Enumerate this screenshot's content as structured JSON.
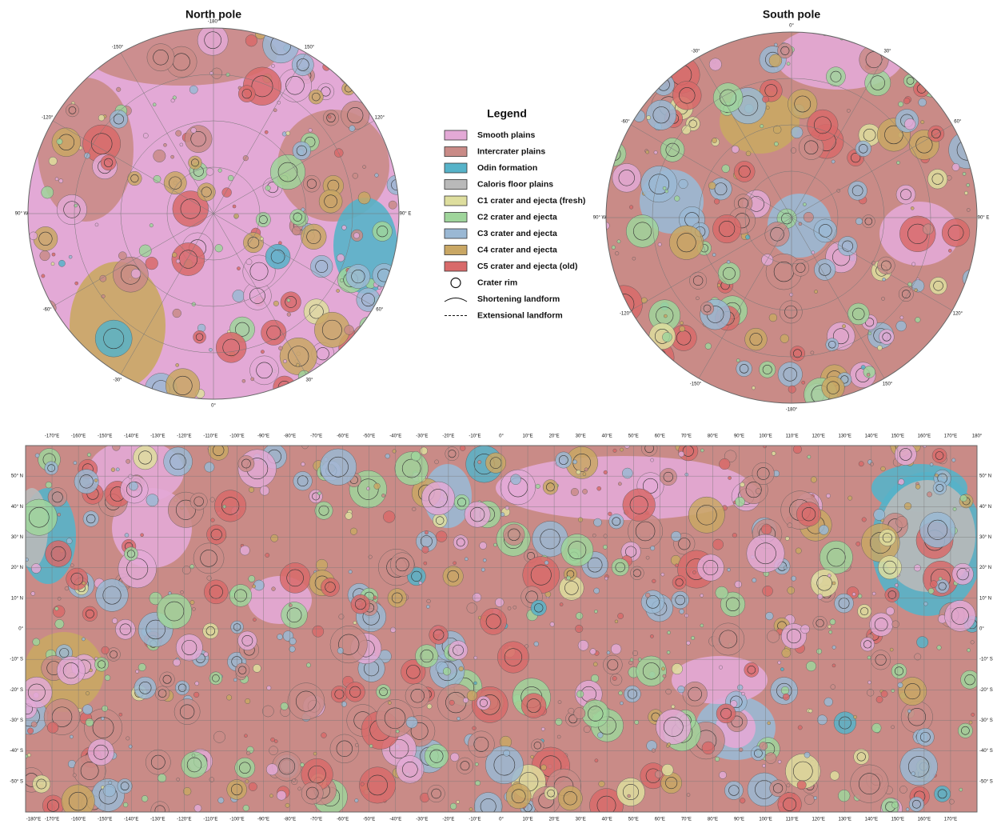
{
  "north_pole": {
    "title": "North pole",
    "labels": [
      "-180°",
      "150°",
      "120°",
      "90° E",
      "60°",
      "30°",
      "0°",
      "-30°",
      "-60°",
      "90° W",
      "-120°",
      "-150°"
    ]
  },
  "south_pole": {
    "title": "South pole",
    "labels": [
      "0°",
      "30°",
      "60°",
      "90° E",
      "120°",
      "150°",
      "-180°",
      "-150°",
      "-120°",
      "90° W",
      "-60°",
      "-30°"
    ]
  },
  "legend": {
    "title": "Legend",
    "units": [
      {
        "name": "Smooth plains",
        "color": "#e3a9d6"
      },
      {
        "name": "Intercrater plains",
        "color": "#c98b87"
      },
      {
        "name": "Odin formation",
        "color": "#56b3c9"
      },
      {
        "name": "Caloris floor plains",
        "color": "#b9b9b9"
      },
      {
        "name": "C1 crater and ejecta (fresh)",
        "color": "#dede9e"
      },
      {
        "name": "C2 crater and ejecta",
        "color": "#9fd59b"
      },
      {
        "name": "C3 crater and ejecta",
        "color": "#9ab8d4"
      },
      {
        "name": "C4 crater and ejecta",
        "color": "#c9a764"
      },
      {
        "name": "C5 crater and ejecta (old)",
        "color": "#d86a6a"
      }
    ],
    "symbols": [
      "Crater rim",
      "Shortening landform",
      "Extensional landform"
    ]
  },
  "global_map": {
    "top_labels": [
      "-170°E",
      "-160°E",
      "-150°E",
      "-140°E",
      "-130°E",
      "-120°E",
      "-110°E",
      "-100°E",
      "-90°E",
      "-80°E",
      "-70°E",
      "-60°E",
      "-50°E",
      "-40°E",
      "-30°E",
      "-20°E",
      "-10°E",
      "0°",
      "10°E",
      "20°E",
      "30°E",
      "40°E",
      "50°E",
      "60°E",
      "70°E",
      "80°E",
      "90°E",
      "100°E",
      "110°E",
      "120°E",
      "130°E",
      "140°E",
      "150°E",
      "160°E",
      "170°E",
      "180°"
    ],
    "bottom_labels": [
      "-180°E",
      "-170°E",
      "-160°E",
      "-150°E",
      "-140°E",
      "-130°E",
      "-120°E",
      "-110°E",
      "-100°E",
      "-90°E",
      "-80°E",
      "-70°E",
      "-60°E",
      "-50°E",
      "-40°E",
      "-30°E",
      "-20°E",
      "-10°E",
      "0°",
      "10°E",
      "20°E",
      "30°E",
      "40°E",
      "50°E",
      "60°E",
      "70°E",
      "80°E",
      "90°E",
      "100°E",
      "110°E",
      "120°E",
      "130°E",
      "140°E",
      "150°E",
      "160°E",
      "170°E"
    ],
    "lat_labels": [
      "50° N",
      "40° N",
      "30° N",
      "20° N",
      "10° N",
      "0°",
      "-10° S",
      "-20° S",
      "-30° S",
      "-40° S",
      "-50° S"
    ]
  }
}
